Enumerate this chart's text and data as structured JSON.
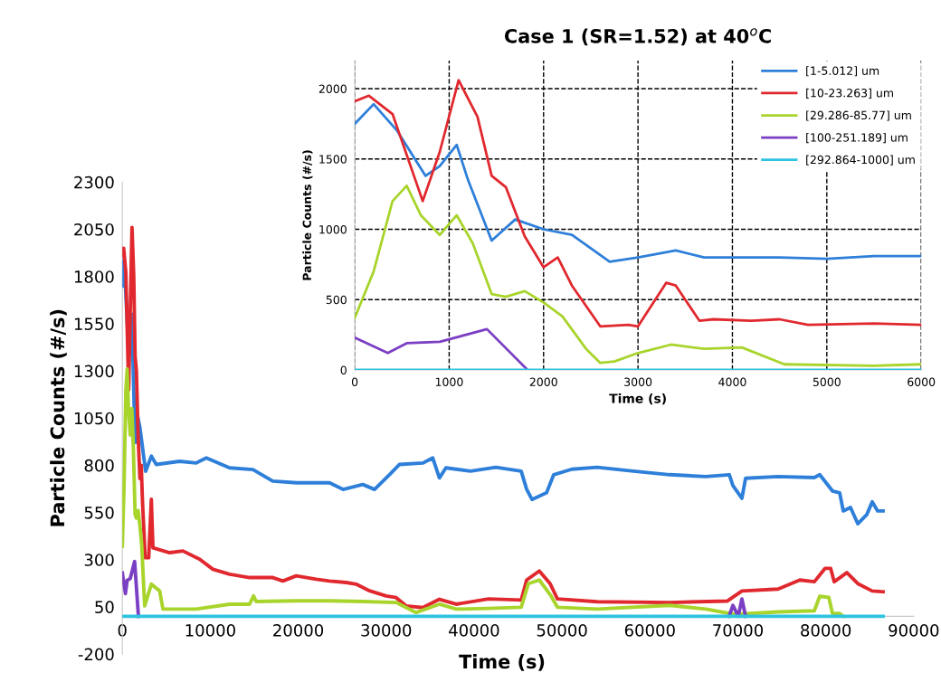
{
  "chart_data": [
    {
      "type": "line",
      "xlabel": "Time (s)",
      "ylabel": "Particle Counts (#/s)",
      "xlim": [
        0,
        90000
      ],
      "ylim": [
        -200,
        2300
      ],
      "xticks": [
        0,
        10000,
        20000,
        30000,
        40000,
        50000,
        60000,
        70000,
        80000,
        90000
      ],
      "yticks": [
        -200,
        50,
        300,
        550,
        800,
        1050,
        1300,
        1550,
        1800,
        2050,
        2300
      ],
      "series": [
        {
          "color": "#2e7fd9",
          "x": [
            0,
            200,
            750,
            1080,
            1450,
            1700,
            2000,
            2650,
            3300,
            3860,
            6500,
            8400,
            9550,
            12200,
            14850,
            17100,
            19800,
            23560,
            25100,
            27350,
            28680,
            30400,
            31500,
            34200,
            35300,
            36060,
            36800,
            39600,
            42480,
            45360,
            45980,
            46590,
            48240,
            49060,
            51120,
            54000,
            58120,
            62240,
            66350,
            69030,
            69440,
            70460,
            70880,
            74580,
            78700,
            79310,
            80760,
            81580,
            81990,
            82810,
            83640,
            84670,
            85280,
            85900,
            86520
          ],
          "values": [
            1750,
            1890,
            1380,
            1600,
            920,
            1070,
            1000,
            768,
            848,
            804,
            821,
            812,
            839,
            786,
            777,
            716,
            707,
            707,
            672,
            698,
            672,
            751,
            804,
            812,
            839,
            733,
            786,
            769,
            789,
            769,
            673,
            619,
            654,
            750,
            779,
            789,
            769,
            750,
            740,
            750,
            692,
            625,
            731,
            740,
            735,
            750,
            664,
            654,
            558,
            577,
            490,
            539,
            606,
            558,
            558
          ]
        },
        {
          "color": "#e0282e",
          "x": [
            0,
            150,
            400,
            720,
            1100,
            1300,
            1450,
            1600,
            1800,
            2000,
            2150,
            2300,
            2600,
            3000,
            3300,
            3480,
            5380,
            6890,
            8790,
            10300,
            12200,
            14470,
            17120,
            18260,
            19770,
            22050,
            23560,
            25460,
            26590,
            28110,
            30000,
            31140,
            32270,
            34170,
            36060,
            37960,
            41650,
            45360,
            45980,
            47420,
            48650,
            49480,
            54000,
            62240,
            68820,
            70460,
            74580,
            77050,
            78700,
            79930,
            80550,
            80960,
            82400,
            83640,
            85280,
            86520
          ],
          "values": [
            1910,
            1950,
            1820,
            1200,
            2060,
            1800,
            1380,
            1300,
            950,
            730,
            800,
            600,
            310,
            310,
            620,
            363,
            337,
            346,
            302,
            249,
            223,
            205,
            205,
            187,
            214,
            196,
            187,
            179,
            170,
            135,
            108,
            99,
            55,
            46,
            90,
            64,
            92,
            86,
            192,
            240,
            173,
            92,
            77,
            73,
            81,
            134,
            144,
            192,
            183,
            254,
            254,
            183,
            231,
            173,
            134,
            130
          ]
        },
        {
          "color": "#a8d42c",
          "x": [
            0,
            200,
            400,
            550,
            700,
            900,
            1080,
            1250,
            1450,
            1600,
            1800,
            2000,
            2200,
            2540,
            3300,
            4240,
            4620,
            6520,
            8410,
            12200,
            14470,
            14920,
            15230,
            19770,
            23560,
            27350,
            31140,
            33410,
            36060,
            37960,
            41650,
            45360,
            46180,
            47420,
            48650,
            49480,
            54000,
            62240,
            66350,
            69640,
            74580,
            78700,
            79310,
            80350,
            80760,
            81580,
            82000
          ],
          "values": [
            370,
            700,
            1200,
            1310,
            1100,
            960,
            1100,
            900,
            540,
            520,
            560,
            480,
            380,
            55,
            170,
            135,
            38,
            38,
            38,
            64,
            64,
            108,
            78,
            82,
            82,
            78,
            73,
            20,
            64,
            38,
            42,
            48,
            173,
            192,
            115,
            48,
            38,
            58,
            38,
            10,
            23,
            29,
            106,
            100,
            15,
            15,
            0
          ]
        },
        {
          "color": "#7b3fc4",
          "x": [
            0,
            350,
            550,
            900,
            1400,
            1830,
            2000,
            69000,
            69440,
            70050,
            70460,
            70880
          ],
          "values": [
            230,
            120,
            190,
            200,
            290,
            0,
            null,
            0,
            58,
            0,
            92,
            0
          ]
        },
        {
          "color": "#2ec4e0",
          "x": [
            0,
            86520
          ],
          "values": [
            0,
            0
          ]
        }
      ]
    },
    {
      "type": "line",
      "title": "Case 1 (SR=1.52) at 40$^{o}$C",
      "xlabel": "Time (s)",
      "ylabel": "Particle Counts (#/s)",
      "xlim": [
        0,
        6000
      ],
      "ylim": [
        0,
        2200
      ],
      "xticks": [
        0,
        1000,
        2000,
        3000,
        4000,
        5000,
        6000
      ],
      "yticks": [
        0,
        500,
        1000,
        1500,
        2000
      ],
      "grid": true,
      "legend": "top right",
      "series": [
        {
          "name": "[1-5.012] um",
          "color": "#2e7fd9",
          "x": [
            0,
            200,
            450,
            750,
            900,
            1080,
            1200,
            1450,
            1700,
            2000,
            2300,
            2700,
            3000,
            3400,
            3700,
            4000,
            4500,
            5000,
            5500,
            6000
          ],
          "values": [
            1750,
            1890,
            1700,
            1380,
            1450,
            1600,
            1350,
            920,
            1070,
            1000,
            960,
            770,
            800,
            850,
            800,
            800,
            800,
            790,
            810,
            810
          ]
        },
        {
          "name": "[10-23.263] um",
          "color": "#e0282e",
          "x": [
            0,
            150,
            400,
            720,
            900,
            1100,
            1300,
            1450,
            1600,
            1800,
            2000,
            2150,
            2300,
            2600,
            2900,
            3000,
            3300,
            3400,
            3650,
            3800,
            4200,
            4500,
            4800,
            5500,
            6000
          ],
          "values": [
            1910,
            1950,
            1820,
            1200,
            1550,
            2060,
            1800,
            1380,
            1300,
            950,
            730,
            800,
            600,
            310,
            320,
            310,
            620,
            600,
            350,
            360,
            350,
            360,
            320,
            330,
            320
          ]
        },
        {
          "name": "[29.286-85.77] um",
          "color": "#a8d42c",
          "x": [
            0,
            200,
            400,
            550,
            700,
            900,
            1080,
            1250,
            1450,
            1600,
            1800,
            2000,
            2200,
            2450,
            2600,
            2750,
            3000,
            3350,
            3700,
            4100,
            4550,
            5500,
            6000
          ],
          "values": [
            370,
            700,
            1200,
            1310,
            1100,
            960,
            1100,
            900,
            540,
            520,
            560,
            480,
            380,
            150,
            50,
            60,
            120,
            180,
            150,
            160,
            40,
            30,
            40
          ]
        },
        {
          "name": "[100-251.189] um",
          "color": "#7b3fc4",
          "x": [
            0,
            350,
            550,
            900,
            1400,
            1830
          ],
          "values": [
            230,
            120,
            190,
            200,
            290,
            0
          ]
        },
        {
          "name": "[292.864-1000] um",
          "color": "#2ec4e0",
          "x": [
            0,
            6000
          ],
          "values": [
            0,
            0
          ]
        }
      ]
    }
  ]
}
